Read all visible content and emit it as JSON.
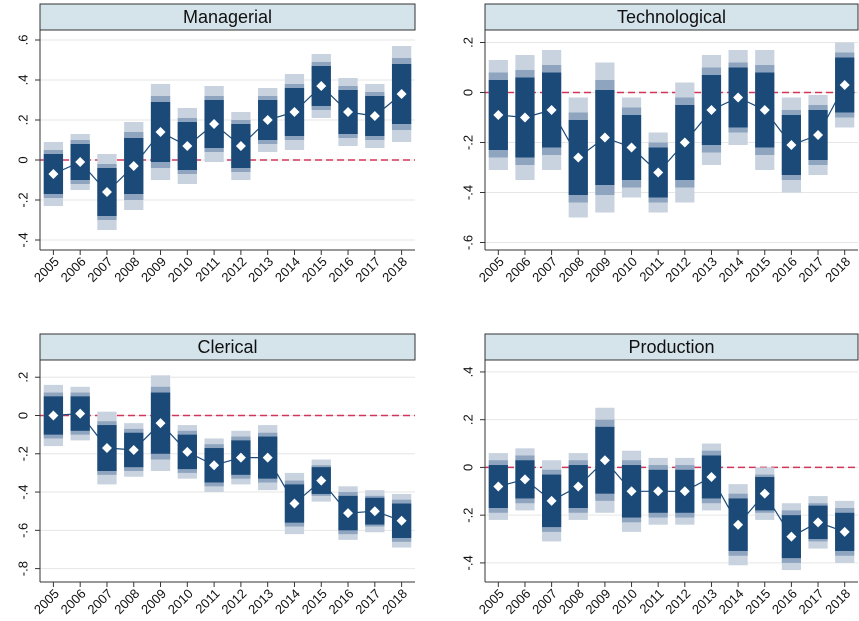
{
  "chart_data": [
    {
      "type": "interval",
      "title": "Managerial",
      "categories": [
        "2005",
        "2006",
        "2007",
        "2008",
        "2009",
        "2010",
        "2011",
        "2012",
        "2013",
        "2014",
        "2015",
        "2016",
        "2017",
        "2018"
      ],
      "values": [
        -0.07,
        -0.01,
        -0.16,
        -0.03,
        0.14,
        0.07,
        0.18,
        0.07,
        0.2,
        0.24,
        0.37,
        0.24,
        0.22,
        0.33
      ],
      "intervals": [
        {
          "color": "#c8d3df",
          "errors": [
            0.16,
            0.14,
            0.19,
            0.22,
            0.24,
            0.19,
            0.19,
            0.17,
            0.16,
            0.19,
            0.16,
            0.17,
            0.16,
            0.24
          ]
        },
        {
          "color": "#8fa5bf",
          "errors": [
            0.12,
            0.11,
            0.14,
            0.17,
            0.18,
            0.14,
            0.14,
            0.13,
            0.12,
            0.14,
            0.12,
            0.13,
            0.12,
            0.18
          ]
        },
        {
          "color": "#1b4a78",
          "errors": [
            0.1,
            0.09,
            0.12,
            0.14,
            0.15,
            0.12,
            0.12,
            0.11,
            0.1,
            0.12,
            0.1,
            0.11,
            0.1,
            0.15
          ]
        }
      ],
      "line_color": "#1b4a78",
      "refline": {
        "value": 0,
        "color": "#d0365a"
      },
      "ylim": [
        -0.45,
        0.65
      ],
      "yticks": [
        {
          "value": -0.4,
          "label": "-.4"
        },
        {
          "value": -0.2,
          "label": "-.2"
        },
        0,
        {
          "value": 0.2,
          "label": ".2"
        },
        {
          "value": 0.4,
          "label": ".4"
        },
        {
          "value": 0.6,
          "label": ".6"
        }
      ],
      "grid": true
    },
    {
      "type": "interval",
      "title": "Technological",
      "categories": [
        "2005",
        "2006",
        "2007",
        "2008",
        "2009",
        "2010",
        "2011",
        "2012",
        "2013",
        "2014",
        "2015",
        "2016",
        "2017",
        "2018"
      ],
      "values": [
        -0.09,
        -0.1,
        -0.07,
        -0.26,
        -0.18,
        -0.22,
        -0.32,
        -0.2,
        -0.07,
        -0.02,
        -0.07,
        -0.21,
        -0.17,
        0.03
      ],
      "intervals": [
        {
          "color": "#c8d3df",
          "errors": [
            0.22,
            0.25,
            0.24,
            0.24,
            0.3,
            0.2,
            0.16,
            0.24,
            0.22,
            0.19,
            0.24,
            0.19,
            0.16,
            0.17
          ]
        },
        {
          "color": "#8fa5bf",
          "errors": [
            0.17,
            0.19,
            0.18,
            0.18,
            0.23,
            0.16,
            0.12,
            0.18,
            0.17,
            0.14,
            0.18,
            0.14,
            0.12,
            0.13
          ]
        },
        {
          "color": "#1b4a78",
          "errors": [
            0.14,
            0.16,
            0.15,
            0.15,
            0.19,
            0.13,
            0.1,
            0.15,
            0.14,
            0.12,
            0.15,
            0.12,
            0.1,
            0.11
          ]
        }
      ],
      "line_color": "#1b4a78",
      "refline": {
        "value": 0,
        "color": "#d0365a"
      },
      "ylim": [
        -0.63,
        0.25
      ],
      "yticks": [
        {
          "value": -0.6,
          "label": "-.6"
        },
        {
          "value": -0.4,
          "label": "-.4"
        },
        {
          "value": -0.2,
          "label": "-.2"
        },
        0,
        {
          "value": 0.2,
          "label": ".2"
        }
      ],
      "grid": true
    },
    {
      "type": "interval",
      "title": "Clerical",
      "categories": [
        "2005",
        "2006",
        "2007",
        "2008",
        "2009",
        "2010",
        "2011",
        "2012",
        "2013",
        "2014",
        "2015",
        "2016",
        "2017",
        "2018"
      ],
      "values": [
        0.0,
        0.01,
        -0.17,
        -0.18,
        -0.04,
        -0.19,
        -0.26,
        -0.22,
        -0.22,
        -0.46,
        -0.34,
        -0.51,
        -0.5,
        -0.55
      ],
      "intervals": [
        {
          "color": "#c8d3df",
          "errors": [
            0.16,
            0.14,
            0.19,
            0.14,
            0.25,
            0.14,
            0.14,
            0.14,
            0.17,
            0.16,
            0.11,
            0.14,
            0.11,
            0.14
          ]
        },
        {
          "color": "#8fa5bf",
          "errors": [
            0.12,
            0.11,
            0.14,
            0.11,
            0.19,
            0.11,
            0.11,
            0.11,
            0.13,
            0.12,
            0.08,
            0.11,
            0.08,
            0.11
          ]
        },
        {
          "color": "#1b4a78",
          "errors": [
            0.1,
            0.09,
            0.12,
            0.09,
            0.16,
            0.09,
            0.09,
            0.09,
            0.11,
            0.1,
            0.07,
            0.09,
            0.07,
            0.09
          ]
        }
      ],
      "line_color": "#1b4a78",
      "refline": {
        "value": 0,
        "color": "#d0365a"
      },
      "ylim": [
        -0.87,
        0.29
      ],
      "yticks": [
        {
          "value": -0.8,
          "label": "-.8"
        },
        {
          "value": -0.6,
          "label": "-.6"
        },
        {
          "value": -0.4,
          "label": "-.4"
        },
        {
          "value": -0.2,
          "label": "-.2"
        },
        0,
        {
          "value": 0.2,
          "label": ".2"
        }
      ],
      "grid": true
    },
    {
      "type": "interval",
      "title": "Production",
      "categories": [
        "2005",
        "2006",
        "2007",
        "2008",
        "2009",
        "2010",
        "2011",
        "2012",
        "2013",
        "2014",
        "2015",
        "2016",
        "2017",
        "2018"
      ],
      "values": [
        -0.08,
        -0.05,
        -0.14,
        -0.08,
        0.03,
        -0.1,
        -0.1,
        -0.1,
        -0.04,
        -0.24,
        -0.11,
        -0.29,
        -0.23,
        -0.27
      ],
      "intervals": [
        {
          "color": "#c8d3df",
          "errors": [
            0.14,
            0.13,
            0.17,
            0.14,
            0.22,
            0.17,
            0.14,
            0.14,
            0.14,
            0.17,
            0.11,
            0.14,
            0.11,
            0.13
          ]
        },
        {
          "color": "#8fa5bf",
          "errors": [
            0.11,
            0.1,
            0.13,
            0.11,
            0.17,
            0.13,
            0.11,
            0.11,
            0.11,
            0.13,
            0.08,
            0.11,
            0.08,
            0.1
          ]
        },
        {
          "color": "#1b4a78",
          "errors": [
            0.09,
            0.08,
            0.11,
            0.09,
            0.14,
            0.11,
            0.09,
            0.09,
            0.09,
            0.11,
            0.07,
            0.09,
            0.07,
            0.08
          ]
        }
      ],
      "line_color": "#1b4a78",
      "refline": {
        "value": 0,
        "color": "#d0365a"
      },
      "ylim": [
        -0.48,
        0.45
      ],
      "yticks": [
        {
          "value": -0.4,
          "label": "-.4"
        },
        {
          "value": -0.2,
          "label": "-.2"
        },
        0,
        {
          "value": 0.2,
          "label": ".2"
        },
        {
          "value": 0.4,
          "label": ".4"
        }
      ],
      "grid": true
    }
  ]
}
